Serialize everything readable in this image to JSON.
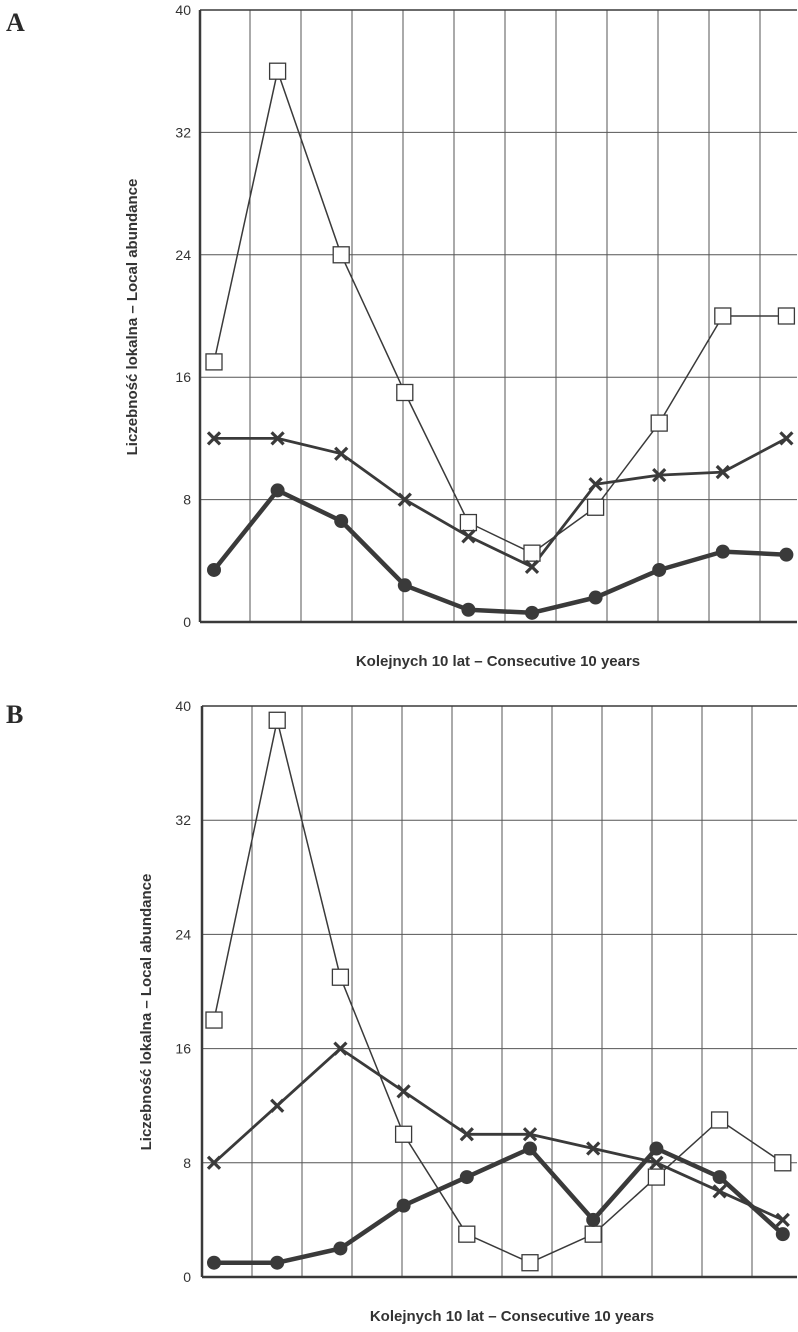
{
  "chart_data": [
    {
      "panel": "A",
      "type": "line",
      "xlabel": "Kolejnych 10 lat – Consecutive 10 years",
      "ylabel": "Liczebność lokalna – Local abundance",
      "ylim": [
        0,
        40
      ],
      "yticks": [
        "0",
        "8",
        "16",
        "24",
        "32",
        "40"
      ],
      "grid": true,
      "series": [
        {
          "marker": "square",
          "values": [
            17,
            36,
            24,
            15,
            6.5,
            4.5,
            7.5,
            13,
            20,
            20
          ],
          "line_x": [
            1,
            2,
            3,
            4,
            5,
            6,
            7,
            8,
            9,
            10
          ],
          "line_values": [
            17,
            36,
            24,
            15,
            6.5,
            4.5,
            7.5,
            13,
            20,
            20
          ]
        },
        {
          "marker": "cross",
          "values": [
            12,
            12,
            11,
            8,
            5.6,
            3.6,
            9,
            9.6,
            9.8,
            12
          ]
        },
        {
          "marker": "circle",
          "values": [
            3.4,
            8.6,
            6.6,
            2.4,
            0.8,
            0.6,
            1.6,
            3.4,
            4.6,
            4.4
          ]
        }
      ]
    },
    {
      "panel": "B",
      "type": "line",
      "xlabel": "Kolejnych 10 lat – Consecutive 10 years",
      "ylabel": "Liczebność lokalna – Local abundance",
      "ylim": [
        0,
        40
      ],
      "yticks": [
        "0",
        "8",
        "16",
        "24",
        "32",
        "40"
      ],
      "grid": true,
      "series": [
        {
          "marker": "square",
          "values": [
            18,
            39,
            21,
            10,
            3,
            1,
            3,
            7,
            11,
            8
          ]
        },
        {
          "marker": "cross",
          "values": [
            8,
            12,
            16,
            13,
            10,
            10,
            9,
            8,
            6,
            4
          ]
        },
        {
          "marker": "circle",
          "values": [
            1,
            1,
            2,
            5,
            7,
            9,
            4,
            9,
            7,
            3
          ]
        }
      ]
    }
  ],
  "colors": {
    "line": "#3a3a3a",
    "grid": "#555555",
    "axis": "#3a3a3a",
    "marker_fill": "#ffffff"
  }
}
